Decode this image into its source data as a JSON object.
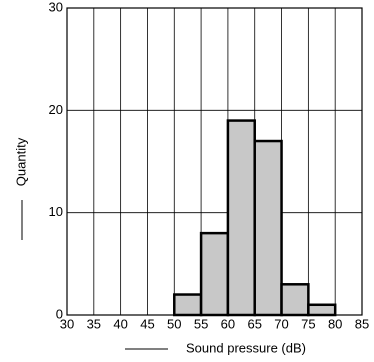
{
  "chart_data": {
    "type": "histogram",
    "xlabel": "Sound pressure (dB)",
    "ylabel": "Quantity",
    "bins": [
      50,
      55,
      60,
      65,
      70,
      75,
      80
    ],
    "values": [
      2,
      8,
      19,
      17,
      3,
      1
    ],
    "color": "#c8c8c8",
    "xlim": [
      30,
      85
    ],
    "xticks": [
      30,
      35,
      40,
      45,
      50,
      55,
      60,
      65,
      70,
      75,
      80,
      85
    ],
    "ylim": [
      0,
      30
    ],
    "yticks": [
      0,
      10,
      20,
      30
    ],
    "grid": true
  }
}
